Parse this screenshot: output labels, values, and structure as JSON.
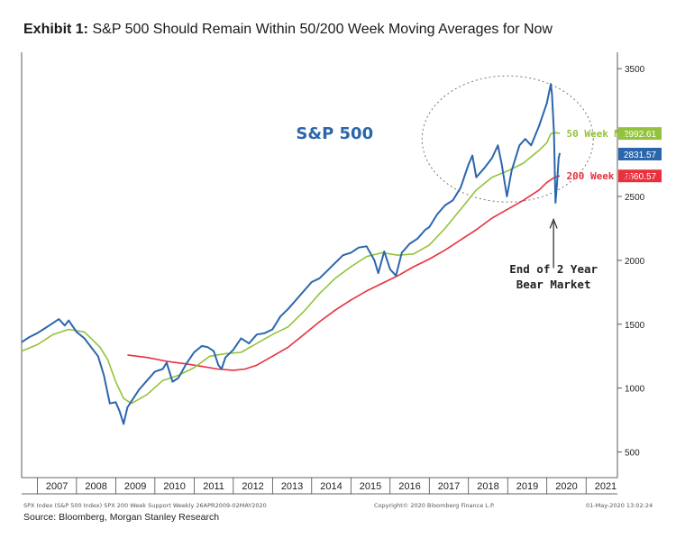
{
  "title": {
    "bold": "Exhibit 1:",
    "text": "S&P 500 Should Remain Within 50/200 Week Moving Averages for Now"
  },
  "footer": {
    "left": "SPX Index (S&P 500 Index) SPX 200 Week Support  Weekly 26APR2009-02MAY2020",
    "center": "Copyright© 2020 Bloomberg Finance L.P.",
    "right": "01-May-2020 13:02:24"
  },
  "source": "Source: Bloomberg, Morgan Stanley Research",
  "colors": {
    "spx": "#2b66ad",
    "ma50": "#93c33c",
    "ma200": "#e8313d"
  },
  "chart_data": {
    "type": "line",
    "title": "S&P 500",
    "xlabel": "",
    "ylabel": "",
    "xlim": [
      2006.6,
      2021.8
    ],
    "ylim": [
      300,
      3600
    ],
    "x_ticks": [
      "2007",
      "2008",
      "2009",
      "2010",
      "2011",
      "2012",
      "2013",
      "2014",
      "2015",
      "2016",
      "2017",
      "2018",
      "2019",
      "2020",
      "2021"
    ],
    "y_ticks": [
      500,
      1000,
      1500,
      2000,
      2500,
      3000,
      3500
    ],
    "series": [
      {
        "name": "S&P 500",
        "x": [
          2006.6,
          2006.8,
          2007.0,
          2007.2,
          2007.4,
          2007.55,
          2007.7,
          2007.8,
          2008.0,
          2008.2,
          2008.4,
          2008.55,
          2008.7,
          2008.85,
          2009.0,
          2009.1,
          2009.2,
          2009.3,
          2009.45,
          2009.6,
          2009.8,
          2010.0,
          2010.2,
          2010.3,
          2010.45,
          2010.6,
          2010.8,
          2011.0,
          2011.2,
          2011.35,
          2011.5,
          2011.62,
          2011.7,
          2011.8,
          2012.0,
          2012.2,
          2012.4,
          2012.6,
          2012.8,
          2013.0,
          2013.2,
          2013.4,
          2013.6,
          2013.8,
          2014.0,
          2014.2,
          2014.4,
          2014.6,
          2014.8,
          2015.0,
          2015.2,
          2015.4,
          2015.6,
          2015.7,
          2015.85,
          2016.0,
          2016.15,
          2016.3,
          2016.5,
          2016.7,
          2016.9,
          2017.0,
          2017.2,
          2017.4,
          2017.6,
          2017.8,
          2018.0,
          2018.1,
          2018.2,
          2018.4,
          2018.6,
          2018.75,
          2018.85,
          2018.98,
          2019.1,
          2019.3,
          2019.45,
          2019.6,
          2019.8,
          2020.0,
          2020.1,
          2020.13,
          2020.18,
          2020.22,
          2020.26,
          2020.3,
          2020.33
        ],
        "y": [
          1360,
          1400,
          1430,
          1470,
          1510,
          1540,
          1490,
          1530,
          1440,
          1390,
          1310,
          1250,
          1100,
          880,
          890,
          820,
          720,
          850,
          920,
          990,
          1060,
          1130,
          1150,
          1200,
          1050,
          1080,
          1190,
          1280,
          1330,
          1320,
          1290,
          1180,
          1150,
          1240,
          1300,
          1390,
          1350,
          1420,
          1430,
          1460,
          1560,
          1620,
          1690,
          1760,
          1830,
          1860,
          1920,
          1980,
          2040,
          2060,
          2100,
          2110,
          2000,
          1900,
          2070,
          1930,
          1880,
          2060,
          2130,
          2170,
          2240,
          2260,
          2360,
          2430,
          2470,
          2570,
          2750,
          2820,
          2650,
          2720,
          2800,
          2900,
          2750,
          2500,
          2700,
          2900,
          2950,
          2900,
          3050,
          3230,
          3380,
          3300,
          3000,
          2450,
          2600,
          2800,
          2840
        ]
      },
      {
        "name": "50 Week MA",
        "x": [
          2006.6,
          2007.0,
          2007.4,
          2007.8,
          2008.2,
          2008.6,
          2008.8,
          2009.0,
          2009.2,
          2009.4,
          2009.8,
          2010.2,
          2010.6,
          2011.0,
          2011.4,
          2011.8,
          2012.2,
          2012.6,
          2013.0,
          2013.4,
          2013.8,
          2014.2,
          2014.6,
          2015.0,
          2015.4,
          2015.8,
          2016.2,
          2016.6,
          2017.0,
          2017.4,
          2017.8,
          2018.2,
          2018.6,
          2019.0,
          2019.4,
          2019.8,
          2020.0,
          2020.1,
          2020.2,
          2020.33
        ],
        "y": [
          1290,
          1340,
          1420,
          1460,
          1440,
          1320,
          1220,
          1050,
          920,
          880,
          950,
          1060,
          1100,
          1160,
          1250,
          1270,
          1280,
          1350,
          1420,
          1480,
          1600,
          1740,
          1860,
          1950,
          2030,
          2060,
          2040,
          2050,
          2120,
          2250,
          2400,
          2550,
          2650,
          2700,
          2760,
          2860,
          2920,
          2990,
          3000,
          2993
        ]
      },
      {
        "name": "200 Week MA",
        "x": [
          2009.3,
          2009.8,
          2010.3,
          2010.8,
          2011.2,
          2011.6,
          2012.0,
          2012.3,
          2012.6,
          2013.0,
          2013.4,
          2013.8,
          2014.2,
          2014.6,
          2015.0,
          2015.4,
          2015.8,
          2016.2,
          2016.6,
          2017.0,
          2017.4,
          2017.8,
          2018.2,
          2018.6,
          2019.0,
          2019.4,
          2019.8,
          2020.0,
          2020.2,
          2020.33
        ],
        "y": [
          1260,
          1240,
          1210,
          1190,
          1170,
          1150,
          1140,
          1150,
          1180,
          1250,
          1320,
          1420,
          1520,
          1610,
          1690,
          1760,
          1820,
          1880,
          1950,
          2010,
          2080,
          2160,
          2240,
          2330,
          2400,
          2470,
          2550,
          2610,
          2650,
          2661
        ]
      }
    ],
    "last_values": [
      {
        "series": "50 Week MA",
        "value": "2992.61",
        "label": "50 Week MA"
      },
      {
        "series": "S&P 500",
        "value": "2831.57",
        "label": ""
      },
      {
        "series": "200 Week MA",
        "value": "2660.57",
        "label": "200 Week MA"
      }
    ],
    "annotations": [
      {
        "text": "S&P 500",
        "kind": "series-title"
      },
      {
        "text": "End of 2 Year",
        "kind": "callout"
      },
      {
        "text": "Bear Market",
        "kind": "callout"
      }
    ],
    "legend": "none",
    "grid": false
  }
}
